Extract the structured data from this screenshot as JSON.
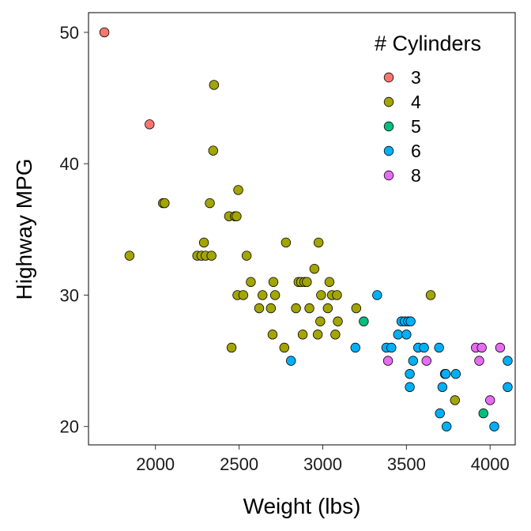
{
  "chart_data": {
    "type": "scatter",
    "title": "",
    "xlabel": "Weight (lbs)",
    "ylabel": "Highway MPG",
    "xlim": [
      1600,
      4150
    ],
    "ylim": [
      18.6,
      51.5
    ],
    "xticks": [
      2000,
      2500,
      3000,
      3500,
      4000
    ],
    "yticks": [
      20,
      30,
      40,
      50
    ],
    "grid": false,
    "legend": {
      "title": "# Cylinders",
      "position": "top-right",
      "entries": [
        "3",
        "4",
        "5",
        "6",
        "8"
      ]
    },
    "series": [
      {
        "name": "3",
        "color": "#F8766D",
        "points": [
          [
            1695,
            50
          ],
          [
            1965,
            43
          ]
        ]
      },
      {
        "name": "4",
        "color": "#A3A500",
        "points": [
          [
            1845,
            33
          ],
          [
            2045,
            37
          ],
          [
            2055,
            37
          ],
          [
            2250,
            33
          ],
          [
            2275,
            33
          ],
          [
            2290,
            34
          ],
          [
            2300,
            33
          ],
          [
            2325,
            37
          ],
          [
            2335,
            33
          ],
          [
            2345,
            41
          ],
          [
            2350,
            46
          ],
          [
            2440,
            36
          ],
          [
            2455,
            26
          ],
          [
            2475,
            36
          ],
          [
            2485,
            36
          ],
          [
            2490,
            30
          ],
          [
            2495,
            38
          ],
          [
            2525,
            30
          ],
          [
            2545,
            33
          ],
          [
            2570,
            31
          ],
          [
            2620,
            29
          ],
          [
            2640,
            30
          ],
          [
            2690,
            29
          ],
          [
            2700,
            27
          ],
          [
            2705,
            31
          ],
          [
            2715,
            30
          ],
          [
            2770,
            26
          ],
          [
            2780,
            34
          ],
          [
            2840,
            29
          ],
          [
            2855,
            31
          ],
          [
            2870,
            31
          ],
          [
            2880,
            27
          ],
          [
            2890,
            31
          ],
          [
            2905,
            31
          ],
          [
            2920,
            29
          ],
          [
            2950,
            32
          ],
          [
            2970,
            27
          ],
          [
            2975,
            34
          ],
          [
            2985,
            28
          ],
          [
            2990,
            30
          ],
          [
            3030,
            29
          ],
          [
            3040,
            31
          ],
          [
            3055,
            30
          ],
          [
            3075,
            27
          ],
          [
            3090,
            28
          ],
          [
            3085,
            30
          ],
          [
            3200,
            29
          ],
          [
            3645,
            30
          ],
          [
            3790,
            22
          ]
        ]
      },
      {
        "name": "5",
        "color": "#00BF7D",
        "points": [
          [
            3245,
            28
          ],
          [
            3960,
            21
          ]
        ]
      },
      {
        "name": "6",
        "color": "#00B0F6",
        "points": [
          [
            2810,
            25
          ],
          [
            3195,
            26
          ],
          [
            3325,
            30
          ],
          [
            3380,
            26
          ],
          [
            3410,
            26
          ],
          [
            3450,
            27
          ],
          [
            3470,
            28
          ],
          [
            3490,
            28
          ],
          [
            3500,
            27
          ],
          [
            3510,
            28
          ],
          [
            3520,
            24
          ],
          [
            3525,
            28
          ],
          [
            3520,
            23
          ],
          [
            3540,
            25
          ],
          [
            3570,
            26
          ],
          [
            3605,
            26
          ],
          [
            3695,
            26
          ],
          [
            3700,
            21
          ],
          [
            3715,
            23
          ],
          [
            3730,
            24
          ],
          [
            3735,
            24
          ],
          [
            3740,
            20
          ],
          [
            3795,
            24
          ],
          [
            4025,
            20
          ],
          [
            4105,
            25
          ],
          [
            4105,
            23
          ]
        ]
      },
      {
        "name": "8",
        "color": "#E76BF3",
        "points": [
          [
            3390,
            25
          ],
          [
            3620,
            25
          ],
          [
            3915,
            26
          ],
          [
            3935,
            25
          ],
          [
            3950,
            26
          ],
          [
            4000,
            22
          ],
          [
            4060,
            26
          ]
        ]
      }
    ]
  }
}
